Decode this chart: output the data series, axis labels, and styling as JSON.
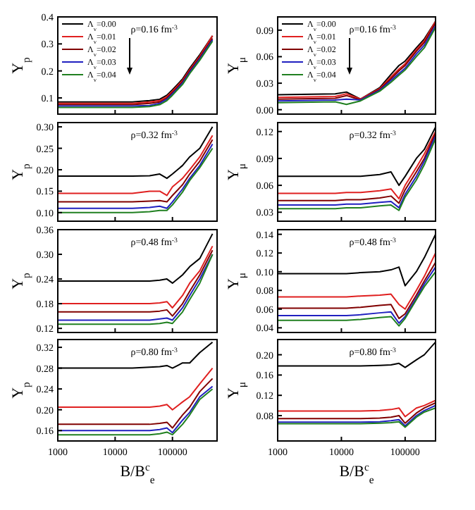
{
  "chart_data": [
    {
      "type": "line",
      "ylabel": "Y$_{p}$",
      "annotations": [
        "ρ=0.16 fm$^{-3}$"
      ],
      "log": "x",
      "legend": "top left",
      "tick_labels": "y",
      "xlim": [
        1000,
        600000
      ],
      "ylim": [
        0.04,
        0.4
      ],
      "xticks": [
        {
          "value": 1000,
          "label": null
        },
        {
          "value": 10000,
          "label": null
        },
        {
          "value": 100000,
          "label": null
        }
      ],
      "yticks": [
        0.1,
        0.2,
        0.3,
        0.4
      ],
      "x": [
        1000,
        20000,
        40000,
        60000,
        80000,
        100000,
        150000,
        200000,
        300000,
        500000
      ],
      "series": [
        {
          "name": "Λ$_{v}$=0.00",
          "color": "#000000",
          "values": [
            0.085,
            0.085,
            0.09,
            0.095,
            0.11,
            0.13,
            0.17,
            0.21,
            0.26,
            0.33
          ]
        },
        {
          "name": "Λ$_{v}$=0.01",
          "color": "#e02020",
          "values": [
            0.08,
            0.08,
            0.085,
            0.09,
            0.105,
            0.125,
            0.165,
            0.205,
            0.255,
            0.33
          ]
        },
        {
          "name": "Λ$_{v}$=0.02",
          "color": "#800000",
          "values": [
            0.075,
            0.075,
            0.08,
            0.085,
            0.1,
            0.12,
            0.16,
            0.2,
            0.25,
            0.32
          ]
        },
        {
          "name": "Λ$_{v}$=0.03",
          "color": "#2020c0",
          "values": [
            0.07,
            0.07,
            0.072,
            0.08,
            0.095,
            0.115,
            0.155,
            0.195,
            0.245,
            0.315
          ]
        },
        {
          "name": "Λ$_{v}$=0.04",
          "color": "#208020",
          "values": [
            0.065,
            0.065,
            0.068,
            0.075,
            0.09,
            0.11,
            0.15,
            0.19,
            0.24,
            0.31
          ]
        }
      ]
    },
    {
      "type": "line",
      "ylabel": "Y$_{μ}$",
      "annotations": [
        "ρ=0.16 fm$^{-3}$"
      ],
      "log": "x",
      "legend": "top left",
      "tick_labels": "y",
      "xlim": [
        1000,
        300000
      ],
      "ylim": [
        -0.005,
        0.105
      ],
      "xticks": [
        {
          "value": 1000,
          "label": null
        },
        {
          "value": 10000,
          "label": null
        },
        {
          "value": 100000,
          "label": null
        }
      ],
      "yticks": [
        {
          "value": 0,
          "label": "0.00"
        },
        0.03,
        0.06,
        0.09
      ],
      "x": [
        1000,
        8000,
        12000,
        20000,
        40000,
        60000,
        80000,
        100000,
        150000,
        200000,
        300000
      ],
      "series": [
        {
          "name": "Λ$_{v}$=0.00",
          "color": "#000000",
          "values": [
            0.017,
            0.018,
            0.02,
            0.012,
            0.025,
            0.04,
            0.05,
            0.055,
            0.07,
            0.08,
            0.1
          ]
        },
        {
          "name": "Λ$_{v}$=0.01",
          "color": "#e02020",
          "values": [
            0.014,
            0.015,
            0.018,
            0.012,
            0.024,
            0.037,
            0.046,
            0.052,
            0.068,
            0.078,
            0.1
          ]
        },
        {
          "name": "Λ$_{v}$=0.02",
          "color": "#800000",
          "values": [
            0.012,
            0.013,
            0.016,
            0.011,
            0.023,
            0.035,
            0.044,
            0.05,
            0.066,
            0.076,
            0.098
          ]
        },
        {
          "name": "Λ$_{v}$=0.03",
          "color": "#2020c0",
          "values": [
            0.01,
            0.011,
            0.012,
            0.011,
            0.022,
            0.033,
            0.041,
            0.047,
            0.063,
            0.073,
            0.095
          ]
        },
        {
          "name": "Λ$_{v}$=0.04",
          "color": "#208020",
          "values": [
            0.008,
            0.009,
            0.006,
            0.01,
            0.021,
            0.031,
            0.039,
            0.045,
            0.06,
            0.07,
            0.093
          ]
        }
      ]
    },
    {
      "type": "line",
      "ylabel": "Y$_{p}$",
      "annotations": [
        "ρ=0.32 fm$^{-3}$"
      ],
      "log": "x",
      "tick_labels": "y",
      "xlim": [
        1000,
        600000
      ],
      "ylim": [
        0.08,
        0.31
      ],
      "xticks": [
        {
          "value": 1000,
          "label": null
        },
        {
          "value": 10000,
          "label": null
        },
        {
          "value": 100000,
          "label": null
        }
      ],
      "yticks": [
        {
          "value": 0.1,
          "label": "0.10"
        },
        0.15,
        {
          "value": 0.2,
          "label": "0.20"
        },
        0.25,
        {
          "value": 0.3,
          "label": "0.30"
        }
      ],
      "x": [
        1000,
        20000,
        40000,
        60000,
        80000,
        100000,
        150000,
        200000,
        300000,
        500000
      ],
      "series": [
        {
          "values": [
            0.185,
            0.185,
            0.186,
            0.19,
            0.18,
            0.19,
            0.21,
            0.23,
            0.25,
            0.3
          ]
        },
        {
          "color": "#e02020",
          "values": [
            0.145,
            0.145,
            0.15,
            0.15,
            0.14,
            0.16,
            0.18,
            0.2,
            0.23,
            0.28
          ]
        },
        {
          "color": "#800000",
          "values": [
            0.125,
            0.125,
            0.127,
            0.128,
            0.125,
            0.14,
            0.165,
            0.19,
            0.22,
            0.27
          ]
        },
        {
          "color": "#2020c0",
          "values": [
            0.11,
            0.11,
            0.112,
            0.115,
            0.11,
            0.125,
            0.155,
            0.18,
            0.21,
            0.26
          ]
        },
        {
          "color": "#208020",
          "values": [
            0.1,
            0.1,
            0.102,
            0.105,
            0.105,
            0.118,
            0.148,
            0.175,
            0.205,
            0.25
          ]
        }
      ]
    },
    {
      "type": "line",
      "ylabel": "Y$_{μ}$",
      "annotations": [
        "ρ=0.32 fm$^{-3}$"
      ],
      "log": "x",
      "tick_labels": "y",
      "xlim": [
        1000,
        300000
      ],
      "ylim": [
        0.02,
        0.13
      ],
      "xticks": [
        {
          "value": 1000,
          "label": null
        },
        {
          "value": 10000,
          "label": null
        },
        {
          "value": 100000,
          "label": null
        }
      ],
      "yticks": [
        0.03,
        0.06,
        0.09,
        0.12
      ],
      "x": [
        1000,
        8000,
        12000,
        20000,
        40000,
        60000,
        80000,
        100000,
        150000,
        200000,
        300000
      ],
      "series": [
        {
          "values": [
            0.07,
            0.07,
            0.07,
            0.07,
            0.072,
            0.075,
            0.06,
            0.07,
            0.09,
            0.1,
            0.125
          ]
        },
        {
          "color": "#e02020",
          "values": [
            0.051,
            0.051,
            0.052,
            0.052,
            0.054,
            0.056,
            0.045,
            0.06,
            0.08,
            0.095,
            0.12
          ]
        },
        {
          "color": "#800000",
          "values": [
            0.043,
            0.043,
            0.044,
            0.044,
            0.046,
            0.048,
            0.04,
            0.055,
            0.075,
            0.09,
            0.118
          ]
        },
        {
          "color": "#2020c0",
          "values": [
            0.038,
            0.038,
            0.039,
            0.039,
            0.041,
            0.042,
            0.035,
            0.05,
            0.07,
            0.087,
            0.115
          ]
        },
        {
          "color": "#208020",
          "values": [
            0.034,
            0.034,
            0.035,
            0.035,
            0.037,
            0.038,
            0.032,
            0.047,
            0.066,
            0.083,
            0.112
          ]
        }
      ]
    },
    {
      "type": "line",
      "ylabel": "Y$_{p}$",
      "annotations": [
        "ρ=0.48 fm$^{-3}$"
      ],
      "log": "x",
      "tick_labels": "y",
      "xlim": [
        1000,
        600000
      ],
      "ylim": [
        0.11,
        0.36
      ],
      "xticks": [
        {
          "value": 1000,
          "label": null
        },
        {
          "value": 10000,
          "label": null
        },
        {
          "value": 100000,
          "label": null
        }
      ],
      "yticks": [
        0.12,
        0.18,
        0.24,
        {
          "value": 0.3,
          "label": "0.30"
        },
        0.36
      ],
      "x": [
        1000,
        20000,
        40000,
        60000,
        80000,
        100000,
        150000,
        200000,
        300000,
        500000
      ],
      "series": [
        {
          "values": [
            0.235,
            0.235,
            0.235,
            0.237,
            0.24,
            0.23,
            0.25,
            0.27,
            0.29,
            0.35
          ]
        },
        {
          "color": "#e02020",
          "values": [
            0.18,
            0.18,
            0.18,
            0.182,
            0.185,
            0.17,
            0.2,
            0.23,
            0.26,
            0.32
          ]
        },
        {
          "color": "#800000",
          "values": [
            0.16,
            0.16,
            0.16,
            0.162,
            0.165,
            0.15,
            0.18,
            0.21,
            0.25,
            0.31
          ]
        },
        {
          "color": "#2020c0",
          "values": [
            0.14,
            0.14,
            0.14,
            0.143,
            0.145,
            0.14,
            0.17,
            0.2,
            0.24,
            0.3
          ]
        },
        {
          "color": "#208020",
          "values": [
            0.13,
            0.13,
            0.13,
            0.132,
            0.135,
            0.132,
            0.16,
            0.19,
            0.23,
            0.3
          ]
        }
      ]
    },
    {
      "type": "line",
      "ylabel": "Y$_{μ}$",
      "annotations": [
        "ρ=0.48 fm$^{-3}$"
      ],
      "log": "x",
      "tick_labels": "y",
      "xlim": [
        1000,
        300000
      ],
      "ylim": [
        0.035,
        0.145
      ],
      "xticks": [
        {
          "value": 1000,
          "label": null
        },
        {
          "value": 10000,
          "label": null
        },
        {
          "value": 100000,
          "label": null
        }
      ],
      "yticks": [
        0.04,
        0.06,
        0.08,
        {
          "value": 0.1,
          "label": "0.10"
        },
        0.12,
        0.14
      ],
      "x": [
        1000,
        8000,
        12000,
        20000,
        40000,
        60000,
        80000,
        100000,
        150000,
        200000,
        300000
      ],
      "series": [
        {
          "values": [
            0.098,
            0.098,
            0.098,
            0.099,
            0.1,
            0.102,
            0.105,
            0.085,
            0.1,
            0.115,
            0.14
          ]
        },
        {
          "color": "#e02020",
          "values": [
            0.073,
            0.073,
            0.073,
            0.074,
            0.075,
            0.076,
            0.065,
            0.06,
            0.08,
            0.095,
            0.12
          ]
        },
        {
          "color": "#800000",
          "values": [
            0.061,
            0.061,
            0.061,
            0.062,
            0.064,
            0.065,
            0.05,
            0.055,
            0.075,
            0.09,
            0.11
          ]
        },
        {
          "color": "#2020c0",
          "values": [
            0.053,
            0.053,
            0.053,
            0.054,
            0.056,
            0.057,
            0.045,
            0.052,
            0.072,
            0.087,
            0.105
          ]
        },
        {
          "color": "#208020",
          "values": [
            0.048,
            0.048,
            0.048,
            0.049,
            0.051,
            0.052,
            0.042,
            0.05,
            0.07,
            0.084,
            0.1
          ]
        }
      ]
    },
    {
      "type": "line",
      "xlabel": "B/B$^{c}$$_{e}$",
      "ylabel": "Y$_{p}$",
      "annotations": [
        "ρ=0.80 fm$^{-3}$"
      ],
      "log": "x",
      "xlim": [
        1000,
        600000
      ],
      "ylim": [
        0.14,
        0.335
      ],
      "xticks": [
        1000,
        10000,
        100000
      ],
      "yticks": [
        0.16,
        {
          "value": 0.2,
          "label": "0.20"
        },
        0.24,
        0.28,
        0.32
      ],
      "x": [
        1000,
        20000,
        40000,
        60000,
        80000,
        100000,
        150000,
        200000,
        300000,
        500000
      ],
      "series": [
        {
          "values": [
            0.28,
            0.28,
            0.282,
            0.283,
            0.285,
            0.28,
            0.29,
            0.29,
            0.31,
            0.33
          ]
        },
        {
          "color": "#e02020",
          "values": [
            0.205,
            0.205,
            0.205,
            0.207,
            0.21,
            0.2,
            0.215,
            0.225,
            0.25,
            0.28
          ]
        },
        {
          "color": "#800000",
          "values": [
            0.172,
            0.172,
            0.172,
            0.174,
            0.176,
            0.165,
            0.19,
            0.205,
            0.235,
            0.26
          ]
        },
        {
          "color": "#2020c0",
          "values": [
            0.16,
            0.16,
            0.16,
            0.162,
            0.165,
            0.156,
            0.18,
            0.195,
            0.225,
            0.245
          ]
        },
        {
          "color": "#208020",
          "values": [
            0.152,
            0.152,
            0.152,
            0.154,
            0.157,
            0.152,
            0.172,
            0.19,
            0.22,
            0.24
          ]
        }
      ]
    },
    {
      "type": "line",
      "xlabel": "B/B$^{c}$$_{e}$",
      "ylabel": "Y$_{μ}$",
      "annotations": [
        "ρ=0.80 fm$^{-3}$"
      ],
      "log": "x",
      "xlim": [
        1000,
        300000
      ],
      "ylim": [
        0.03,
        0.23
      ],
      "xticks": [
        1000,
        10000,
        100000
      ],
      "yticks": [
        0.08,
        0.12,
        0.16,
        {
          "value": 0.2,
          "label": "0.20"
        }
      ],
      "x": [
        1000,
        8000,
        12000,
        20000,
        40000,
        60000,
        80000,
        100000,
        150000,
        200000,
        300000
      ],
      "series": [
        {
          "values": [
            0.178,
            0.178,
            0.178,
            0.178,
            0.179,
            0.18,
            0.183,
            0.175,
            0.19,
            0.2,
            0.225
          ]
        },
        {
          "color": "#e02020",
          "values": [
            0.089,
            0.089,
            0.089,
            0.089,
            0.09,
            0.092,
            0.095,
            0.078,
            0.095,
            0.1,
            0.11
          ]
        },
        {
          "color": "#800000",
          "values": [
            0.074,
            0.074,
            0.074,
            0.074,
            0.075,
            0.077,
            0.08,
            0.065,
            0.085,
            0.095,
            0.105
          ]
        },
        {
          "color": "#2020c0",
          "values": [
            0.067,
            0.067,
            0.067,
            0.067,
            0.068,
            0.07,
            0.072,
            0.06,
            0.08,
            0.09,
            0.1
          ]
        },
        {
          "color": "#208020",
          "values": [
            0.064,
            0.064,
            0.064,
            0.064,
            0.065,
            0.066,
            0.068,
            0.057,
            0.077,
            0.087,
            0.095
          ]
        }
      ]
    }
  ]
}
